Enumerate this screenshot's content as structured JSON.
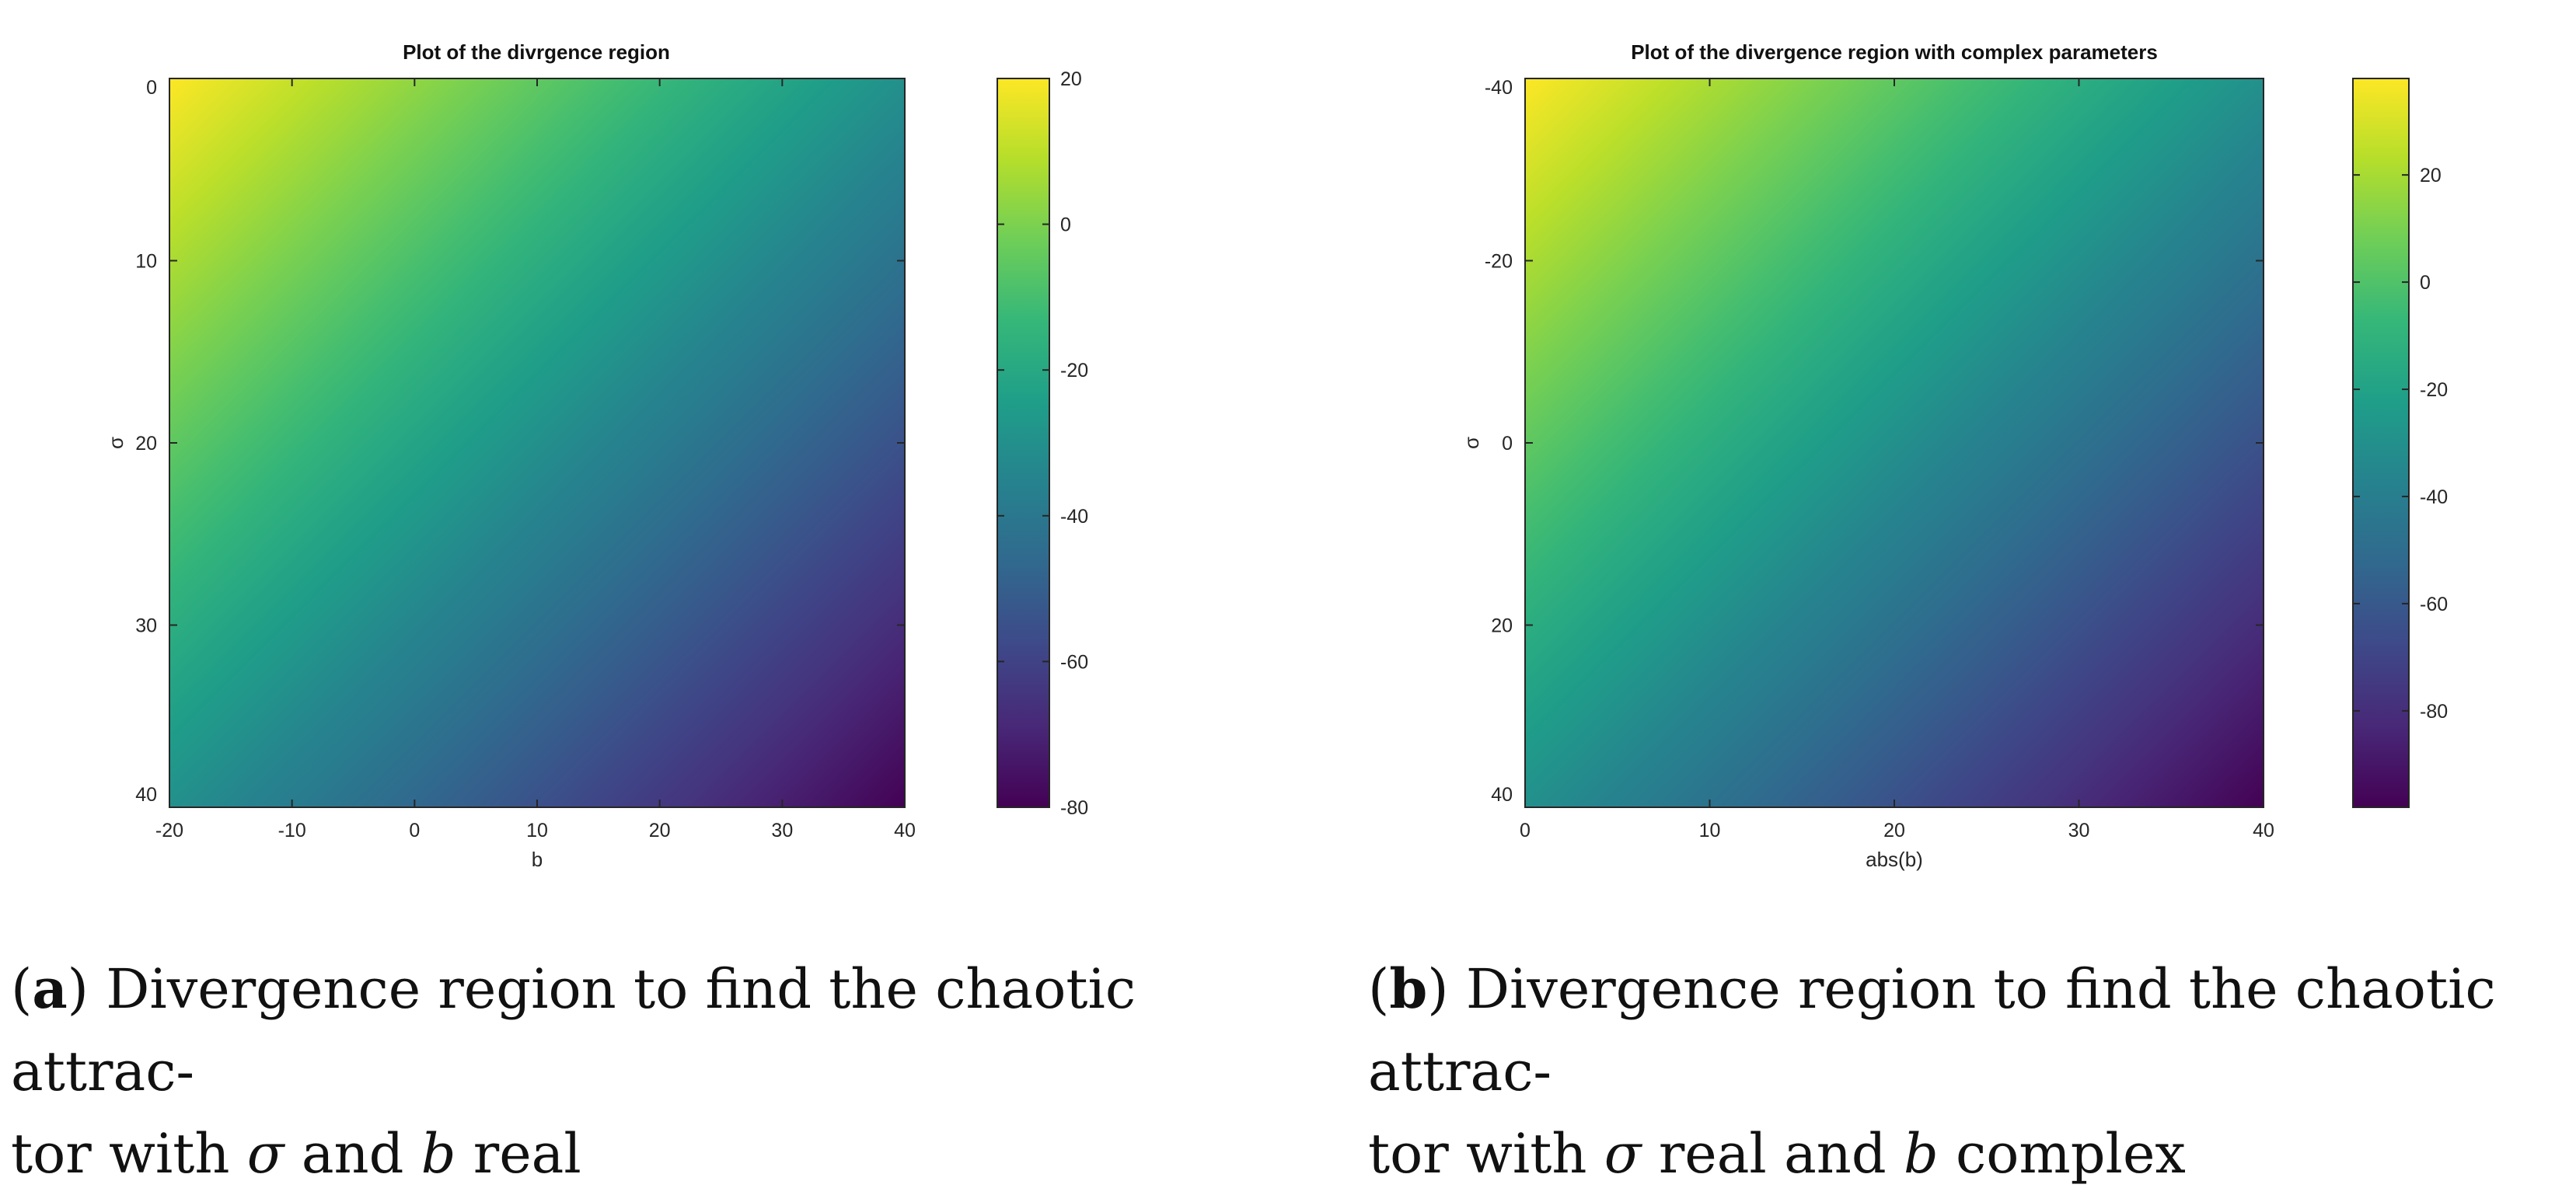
{
  "panels": [
    {
      "caption": {
        "label": "a",
        "line1": "Divergence region to find the chaotic attrac-",
        "line2_pre": "tor with ",
        "var1": "σ",
        "line2_mid": " and ",
        "var2": "b",
        "line2_post": " real"
      }
    },
    {
      "caption": {
        "label": "b",
        "line1": "Divergence region to find the chaotic attrac-",
        "line2_pre": "tor with ",
        "var1": "σ",
        "line2_mid": " real and ",
        "var2": "b",
        "line2_post": " complex"
      }
    }
  ],
  "chart_data": [
    {
      "type": "heatmap",
      "title": "Plot of the divrgence region",
      "xlabel": "b",
      "ylabel": "σ",
      "xlim": [
        -20,
        40
      ],
      "ylim": [
        0,
        40
      ],
      "y_axis_reversed": true,
      "xticks": [
        -20,
        -10,
        0,
        10,
        20,
        30,
        40
      ],
      "yticks": [
        0,
        10,
        20,
        30,
        40
      ],
      "colormap": "viridis",
      "colorbar": {
        "range": [
          -80,
          20
        ],
        "ticks": [
          20,
          0,
          -20,
          -40,
          -60,
          -80
        ]
      },
      "corner_values": {
        "top_left": 20,
        "top_right": -40,
        "bottom_left": -40,
        "bottom_right": -80
      }
    },
    {
      "type": "heatmap",
      "title": "Plot of the divergence region with complex parameters",
      "xlabel": "abs(b)",
      "ylabel": "σ",
      "xlim": [
        0,
        40
      ],
      "ylim": [
        -40,
        40
      ],
      "y_axis_reversed": true,
      "xticks": [
        0,
        10,
        20,
        30,
        40
      ],
      "yticks": [
        -40,
        -20,
        0,
        20,
        40
      ],
      "colormap": "viridis",
      "colorbar": {
        "range": [
          -98,
          38
        ],
        "ticks": [
          20,
          0,
          -20,
          -40,
          -60,
          -80
        ]
      },
      "corner_values": {
        "top_left": 38,
        "top_right": -38,
        "bottom_left": -38,
        "bottom_right": -98
      }
    }
  ]
}
